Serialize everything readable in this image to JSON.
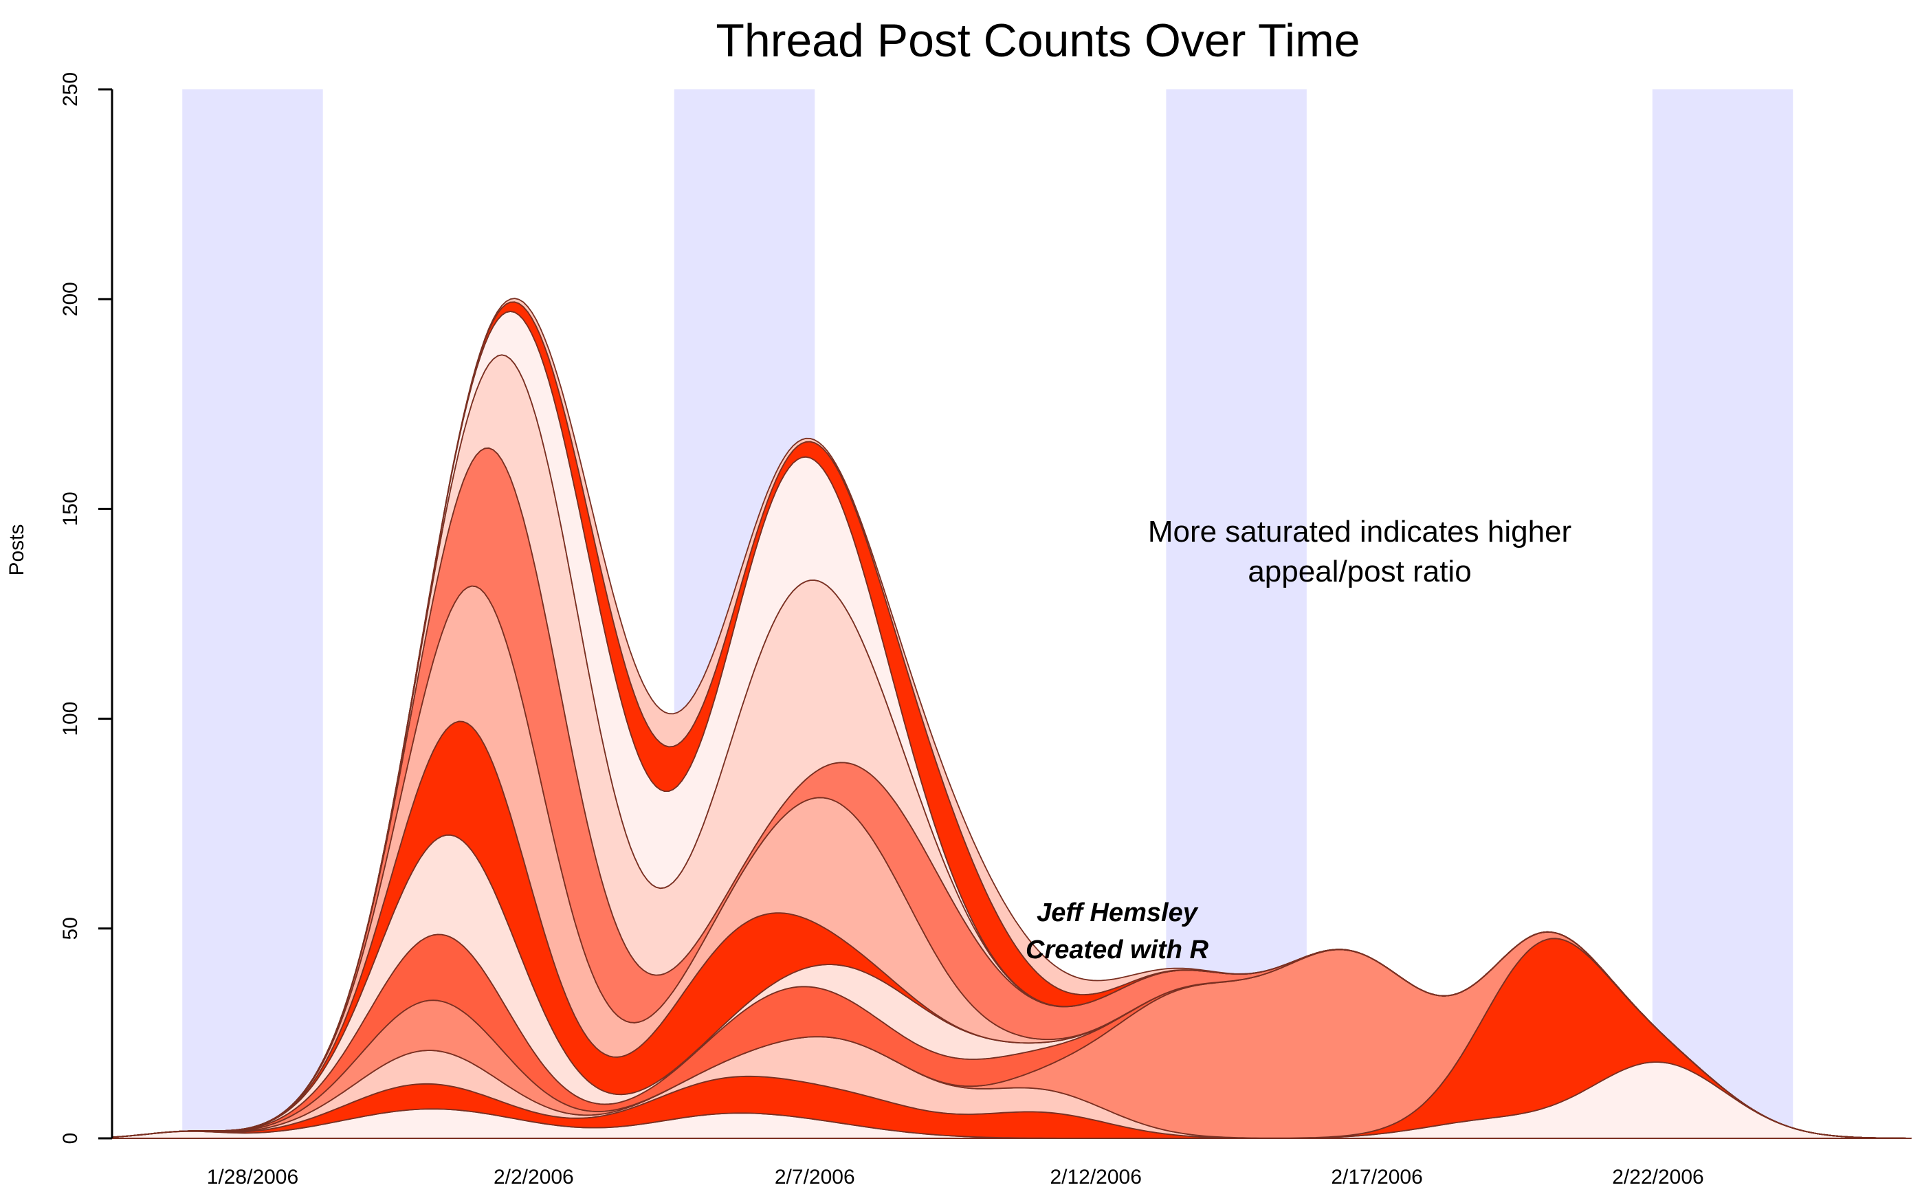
{
  "chart_data": {
    "type": "area",
    "title": "Thread Post Counts Over Time",
    "xlabel": "",
    "ylabel": "Posts",
    "ylim": [
      0,
      250
    ],
    "y_ticks": [
      "0",
      "50",
      "100",
      "150",
      "200",
      "250"
    ],
    "x_tick_labels": [
      "1/28/2006",
      "2/2/2006",
      "2/7/2006",
      "2/12/2006",
      "2/17/2006",
      "2/22/2006"
    ],
    "x_domain_days": [
      -2.5,
      29.5
    ],
    "x_tick_days": [
      0,
      5,
      10,
      15,
      20,
      25
    ],
    "weekend_bands": [
      [
        -1.25,
        1.25
      ],
      [
        7.5,
        10
      ],
      [
        16.25,
        18.75
      ],
      [
        24.9,
        27.4
      ]
    ],
    "annotation": [
      "More saturated indicates higher",
      "appeal/post ratio"
    ],
    "credit": [
      "Jeff Hemsley",
      "Created with R"
    ],
    "band_colors": [
      "#fff0ee",
      "#ff2e00",
      "#ffc9bd",
      "#ff8a72",
      "#ff5f40",
      "#ffe1da",
      "#ff2e00",
      "#ffb4a4",
      "#ff7860",
      "#ffd6cd"
    ],
    "outline_color": "#7a3022",
    "weekend_color": "#e4e4ff",
    "series": [
      {
        "peaks": [
          [
            -1.2,
            1.5,
            0.7
          ],
          [
            3.2,
            7,
            1.6
          ],
          [
            8,
            3,
            1.2
          ],
          [
            9.5,
            4,
            1.5
          ],
          [
            22,
            4,
            1.2
          ],
          [
            25,
            18,
            1.2
          ]
        ]
      },
      {
        "peaks": [
          [
            3,
            6,
            1.3
          ],
          [
            8.5,
            8,
            1.5
          ],
          [
            11,
            5,
            1.2
          ],
          [
            14,
            6,
            1.2
          ],
          [
            23,
            40,
            1.1
          ]
        ]
      },
      {
        "peaks": [
          [
            3.2,
            8,
            1.2
          ],
          [
            10.5,
            12,
            1.4
          ],
          [
            14,
            5,
            1.2
          ]
        ]
      },
      {
        "peaks": [
          [
            3.3,
            12,
            1.2
          ],
          [
            16.5,
            30,
            1.3
          ],
          [
            19.5,
            42,
            1.4
          ]
        ]
      },
      {
        "peaks": [
          [
            3.5,
            16,
            1.2
          ],
          [
            9.5,
            12,
            1.3
          ],
          [
            13,
            6,
            1.4
          ]
        ]
      },
      {
        "peaks": [
          [
            3.8,
            25,
            1.2
          ],
          [
            11.5,
            10,
            1.3
          ]
        ]
      },
      {
        "peaks": [
          [
            4.1,
            30,
            1.1
          ],
          [
            8.5,
            20,
            1.3
          ]
        ]
      },
      {
        "peaks": [
          [
            4.5,
            38,
            1.2
          ],
          [
            10.5,
            32,
            1.3
          ]
        ]
      },
      {
        "peaks": [
          [
            5.0,
            45,
            1.2
          ],
          [
            12,
            20,
            1.3
          ],
          [
            15.5,
            6,
            1.2
          ]
        ]
      },
      {
        "peaks": [
          [
            5.5,
            40,
            1.1
          ],
          [
            9.6,
            48,
            1.3
          ]
        ]
      },
      {
        "peaks": [
          [
            6.2,
            28,
            1.2
          ],
          [
            9.6,
            30,
            1.2
          ]
        ]
      },
      {
        "peaks": [
          [
            6.8,
            12,
            1.2
          ],
          [
            12.2,
            16,
            1.3
          ]
        ]
      },
      {
        "peaks": [
          [
            7.2,
            8,
            1.2
          ],
          [
            13.5,
            6,
            1.3
          ]
        ]
      }
    ]
  }
}
